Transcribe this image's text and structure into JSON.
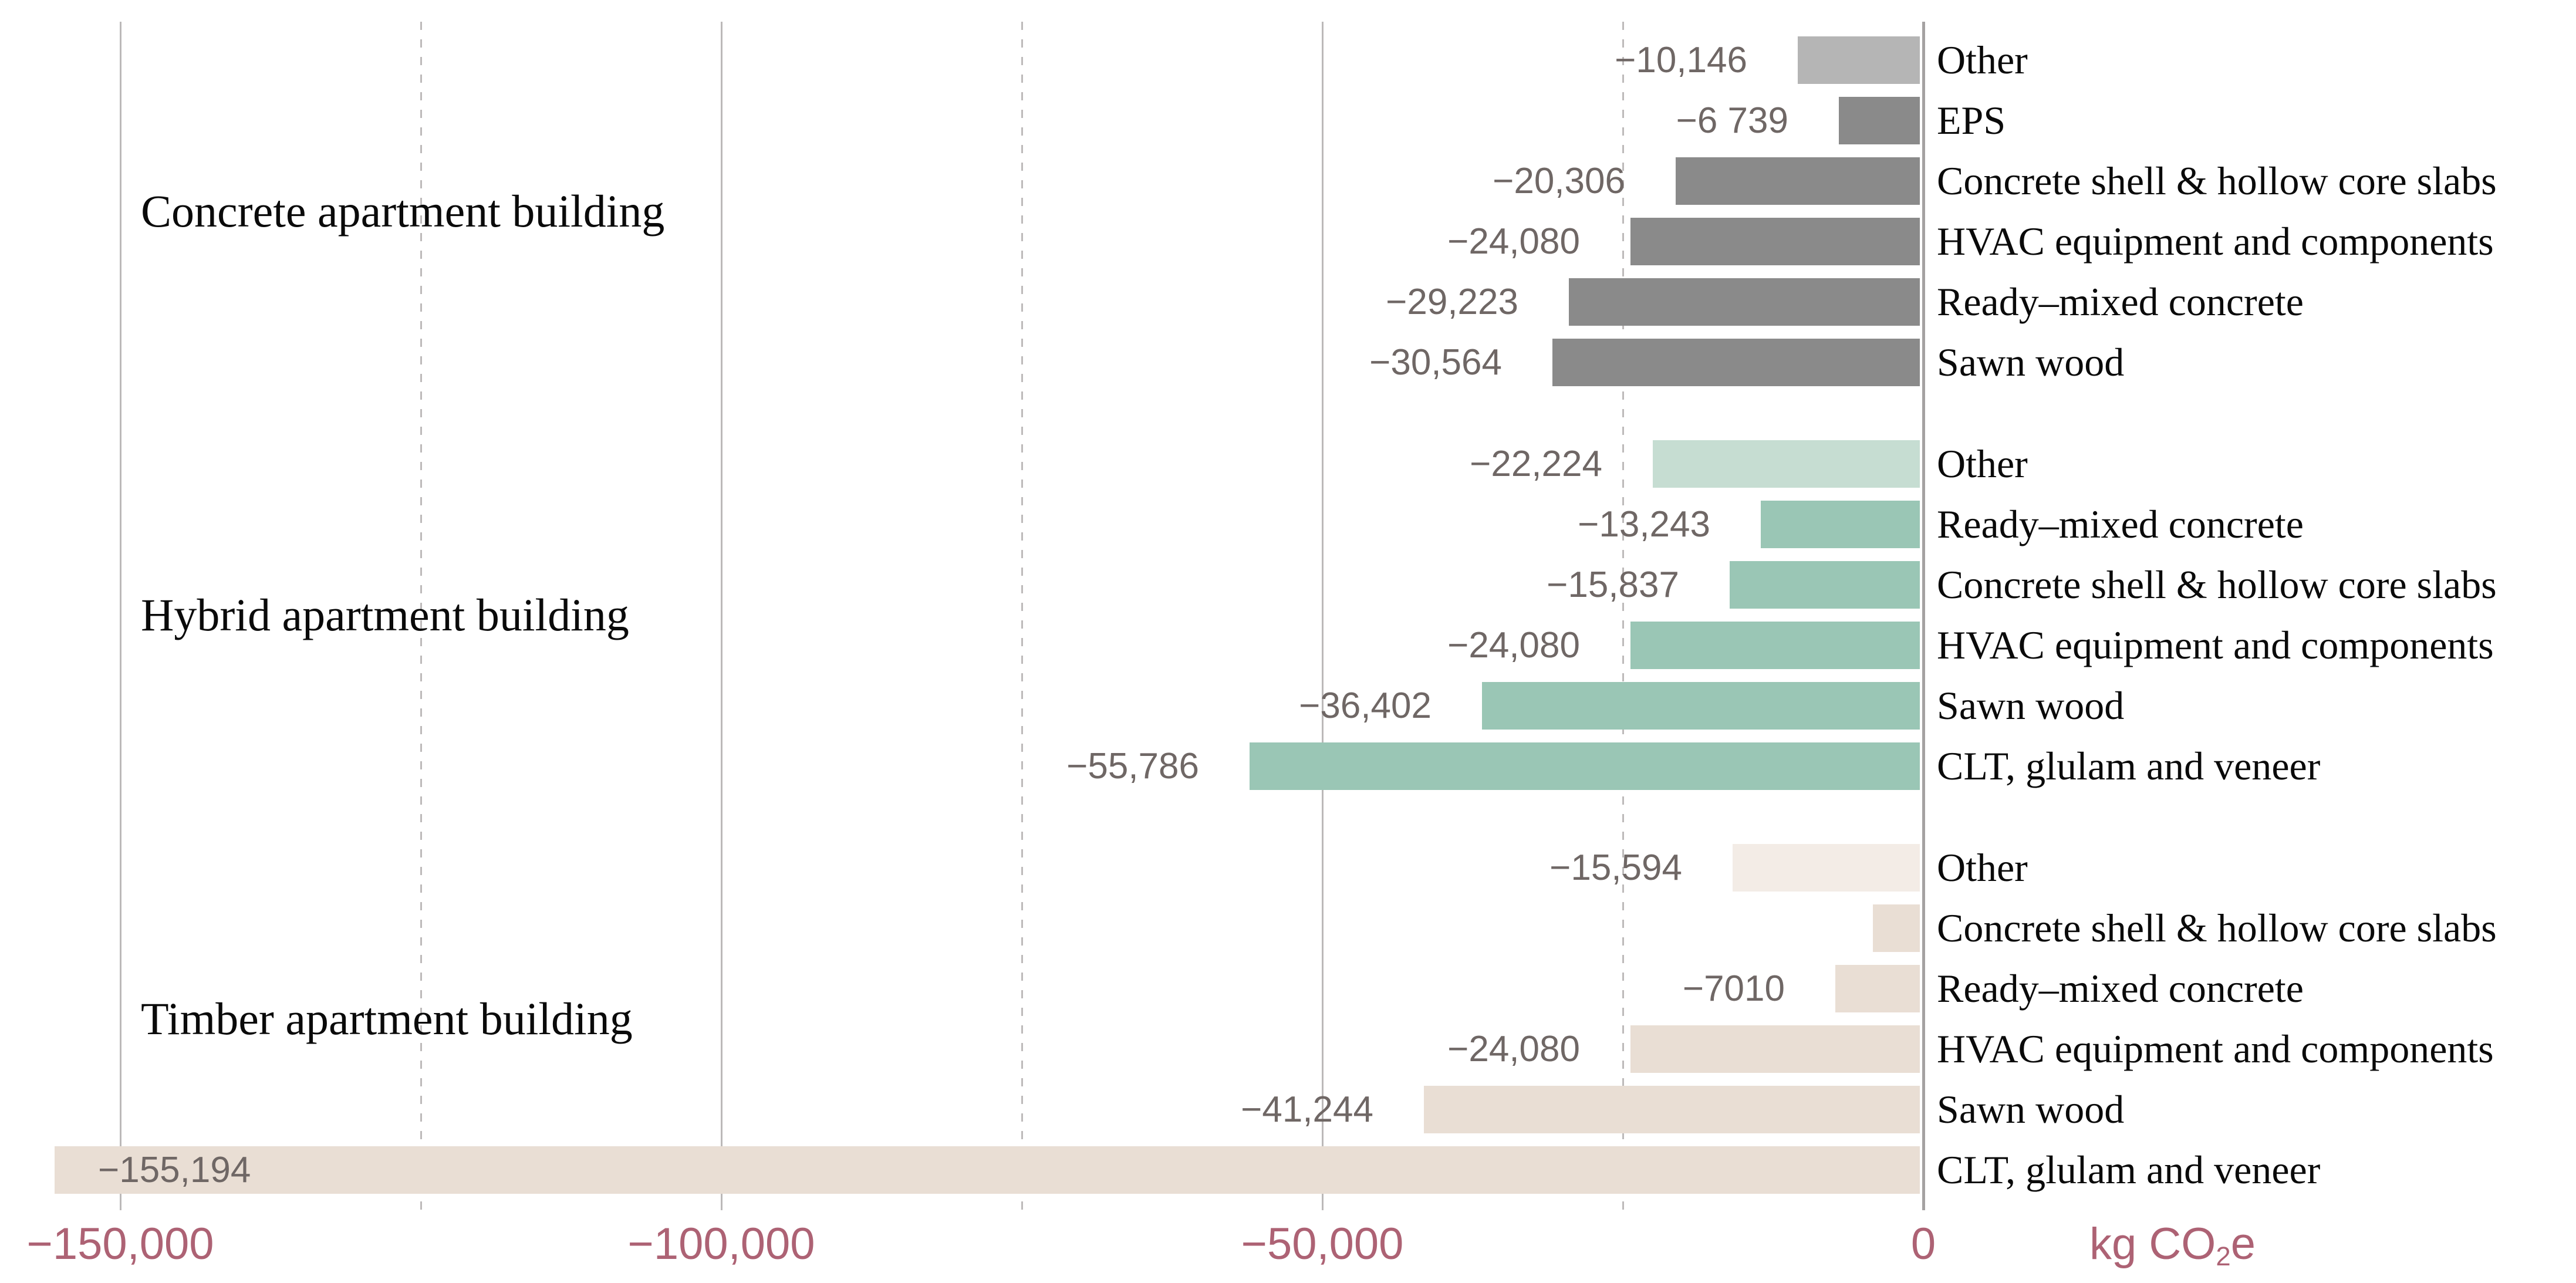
{
  "chart_data": {
    "type": "bar",
    "orientation": "horizontal",
    "title": "",
    "xlabel": "kg CO2e",
    "xlim": [
      -160000,
      0
    ],
    "grid": {
      "solid_values": [
        -150000,
        -100000,
        -50000,
        0
      ],
      "dashed_values": [
        -125000,
        -75000,
        -25000
      ]
    },
    "x_ticks": [
      {
        "value": -150000,
        "label": "−150,000"
      },
      {
        "value": -100000,
        "label": "−100,000"
      },
      {
        "value": -50000,
        "label": "−50,000"
      },
      {
        "value": 0,
        "label": "0"
      }
    ],
    "unit": {
      "prefix": "kg CO",
      "sub": "2",
      "suffix": "e"
    },
    "groups": [
      {
        "label": "Concrete apartment building",
        "bar_color": "#8a8a8a",
        "muted_color": "#b5b5b5",
        "items": [
          {
            "label": "Other",
            "value": -10146,
            "value_label": "−10,146",
            "muted": true
          },
          {
            "label": "EPS",
            "value": -6739,
            "value_label": "−6 739"
          },
          {
            "label": "Concrete shell & hollow core slabs",
            "value": -20306,
            "value_label": "−20,306"
          },
          {
            "label": "HVAC equipment and components",
            "value": -24080,
            "value_label": "−24,080"
          },
          {
            "label": "Ready–mixed concrete",
            "value": -29223,
            "value_label": "−29,223"
          },
          {
            "label": "Sawn wood",
            "value": -30564,
            "value_label": "−30,564"
          }
        ]
      },
      {
        "label": "Hybrid apartment building",
        "bar_color": "#9ac6b5",
        "muted_color": "#c6ddd2",
        "items": [
          {
            "label": "Other",
            "value": -22224,
            "value_label": "−22,224",
            "muted": true
          },
          {
            "label": "Ready–mixed concrete",
            "value": -13243,
            "value_label": "−13,243"
          },
          {
            "label": "Concrete shell & hollow core slabs",
            "value": -15837,
            "value_label": "−15,837"
          },
          {
            "label": "HVAC equipment and components",
            "value": -24080,
            "value_label": "−24,080"
          },
          {
            "label": "Sawn wood",
            "value": -36402,
            "value_label": "−36,402"
          },
          {
            "label": "CLT, glulam and veneer",
            "value": -55786,
            "value_label": "−55,786"
          }
        ]
      },
      {
        "label": "Timber apartment building",
        "bar_color": "#e9ded4",
        "muted_color": "#f3ece6",
        "items": [
          {
            "label": "Other",
            "value": -15594,
            "value_label": "−15,594",
            "muted": true
          },
          {
            "label": "Concrete shell & hollow core slabs",
            "value": -3900,
            "value_label": ""
          },
          {
            "label": "Ready–mixed concrete",
            "value": -7010,
            "value_label": "−7010"
          },
          {
            "label": "HVAC equipment and components",
            "value": -24080,
            "value_label": "−24,080"
          },
          {
            "label": "Sawn wood",
            "value": -41244,
            "value_label": "−41,244"
          },
          {
            "label": "CLT, glulam and veneer",
            "value": -155194,
            "value_label": "−155,194",
            "value_label_inside": true
          }
        ]
      }
    ]
  },
  "colors": {
    "background": "#ffffff",
    "axis_label": "#ad6274",
    "value_label": "#6f6765",
    "gridline_solid": "#bcb9b9",
    "gridline_dashed": "#bdbaba",
    "zero_line": "#a5a2a2",
    "category_label": "#0a0a0a"
  }
}
